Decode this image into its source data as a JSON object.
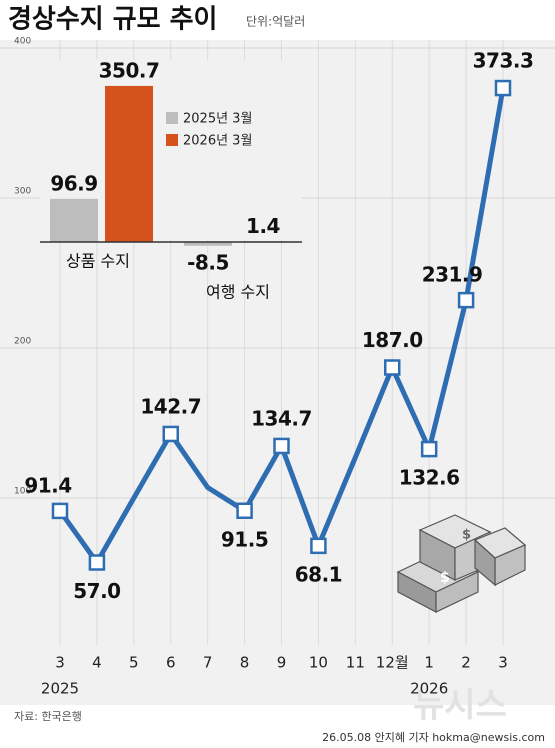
{
  "chart_data": [
    {
      "type": "line",
      "title": "경상수지 규모 추이",
      "unit": "단위:억달러",
      "source": "자료: 한국은행",
      "credit": "26.05.08 안지혜 기자 hokma@newsis.com",
      "watermark": "뉴시스",
      "categories": [
        "3",
        "4",
        "5",
        "6",
        "7",
        "8",
        "9",
        "10",
        "11",
        "12월",
        "1",
        "2",
        "3"
      ],
      "year_labels": [
        "2025",
        "2026"
      ],
      "values": [
        91.4,
        57.0,
        100,
        142.7,
        107,
        91.5,
        134.7,
        68.1,
        127,
        187.0,
        132.6,
        231.9,
        373.3
      ],
      "value_labels": [
        "91.4",
        "57.0",
        null,
        "142.7",
        null,
        "91.5",
        "134.7",
        "68.1",
        null,
        "187.0",
        "132.6",
        "231.9",
        "373.3"
      ],
      "color": "#2f6db3",
      "ylim": [
        0,
        400
      ],
      "yticks": [
        100,
        200,
        300,
        400
      ],
      "grid": true
    },
    {
      "type": "bar",
      "categories": [
        "상품 수지",
        "여행 수지"
      ],
      "series": [
        {
          "name": "2025년 3월",
          "color": "#bdbdbd",
          "values": [
            96.9,
            -8.5
          ]
        },
        {
          "name": "2026년 3월",
          "color": "#d4521b",
          "values": [
            350.7,
            1.4
          ]
        }
      ]
    }
  ]
}
